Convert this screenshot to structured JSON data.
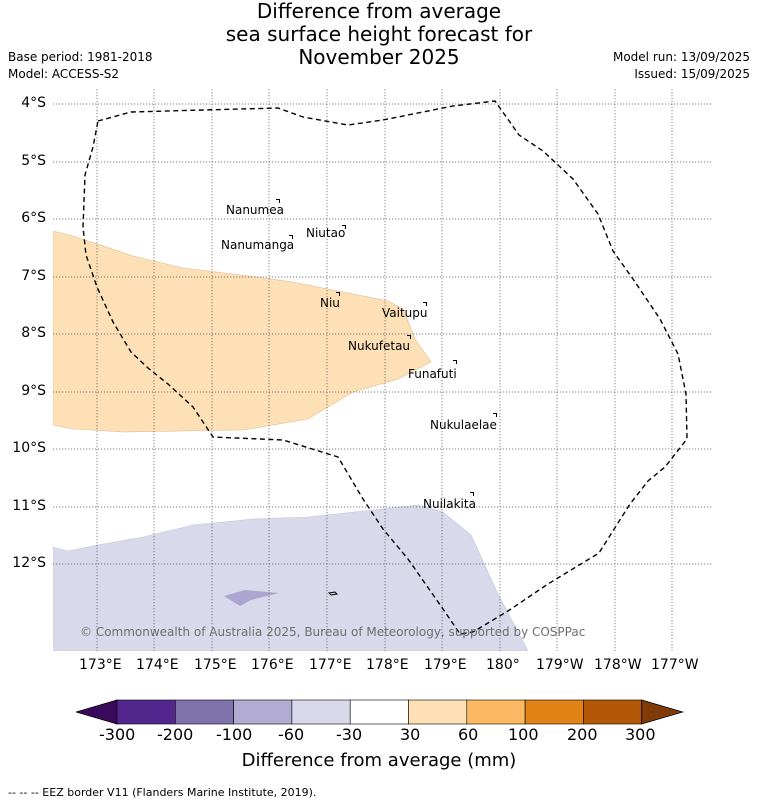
{
  "title": {
    "line1": "Difference from average",
    "line2": "sea surface height forecast for",
    "line3": "November 2025"
  },
  "meta": {
    "base_period": "Base period: 1981-2018",
    "model": "Model: ACCESS-S2",
    "model_run": "Model run: 13/09/2025",
    "issued": "Issued: 15/09/2025"
  },
  "map": {
    "lat_labels": [
      "4°S",
      "5°S",
      "6°S",
      "7°S",
      "8°S",
      "9°S",
      "10°S",
      "11°S",
      "12°S"
    ],
    "lon_labels": [
      "173°E",
      "174°E",
      "175°E",
      "176°E",
      "177°E",
      "178°E",
      "179°E",
      "180°",
      "179°W",
      "178°W",
      "177°W"
    ],
    "islands": [
      {
        "name": "Nanumea"
      },
      {
        "name": "Nanumanga"
      },
      {
        "name": "Niutao"
      },
      {
        "name": "Niu"
      },
      {
        "name": "Vaitupu"
      },
      {
        "name": "Nukufetau"
      },
      {
        "name": "Funafuti"
      },
      {
        "name": "Nukulaelae"
      },
      {
        "name": "Nuilakita"
      }
    ],
    "copyright": "© Commonwealth of Australia 2025, Bureau of Meteorology, supported by COSPPac",
    "colors": {
      "positive_30_60": "#fde0b6",
      "negative_30_60": "#d8d9ea",
      "negative_60_100": "#aca5cf",
      "eez_border": "#000000"
    }
  },
  "colorbar": {
    "ticks": [
      "-300",
      "-200",
      "-100",
      "-60",
      "-30",
      "30",
      "60",
      "100",
      "200",
      "300"
    ],
    "colors": [
      "#3b0a5c",
      "#54278f",
      "#8073ac",
      "#b2abd2",
      "#d8daeb",
      "#ffffff",
      "#fee0b6",
      "#fdb863",
      "#e08214",
      "#b35806",
      "#7f3b08"
    ],
    "label": "Difference from average (mm)"
  },
  "footnote": "--  --  -- EEZ border V11 (Flanders Marine Institute, 2019)."
}
